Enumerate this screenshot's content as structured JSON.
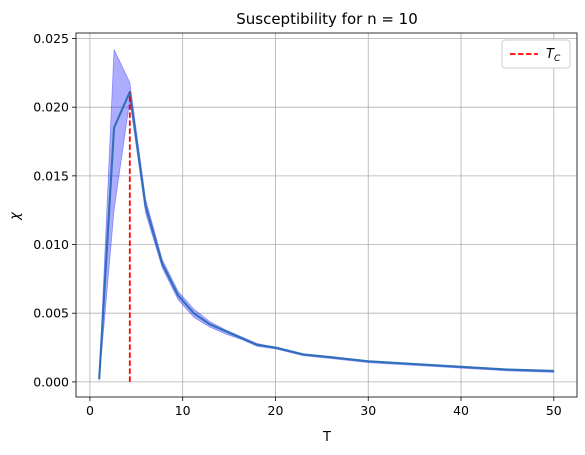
{
  "chart_data": {
    "type": "line",
    "title": "Susceptibility for n = 10",
    "xlabel": "T",
    "ylabel": "χ",
    "xlim": [
      -1.5,
      52.5
    ],
    "ylim": [
      -0.0011,
      0.0254
    ],
    "xticks": [
      0,
      10,
      20,
      30,
      40,
      50
    ],
    "xtick_labels": [
      "0",
      "10",
      "20",
      "30",
      "40",
      "50"
    ],
    "yticks": [
      0.0,
      0.005,
      0.01,
      0.015,
      0.02,
      0.025
    ],
    "ytick_labels": [
      "0.000",
      "0.005",
      "0.010",
      "0.015",
      "0.020",
      "0.025"
    ],
    "grid": true,
    "legend": {
      "placement": "top-right",
      "entries": [
        {
          "label": "T_C",
          "label_main": "T",
          "label_sub": "C",
          "style": "dashed",
          "color": "#ff0000"
        }
      ]
    },
    "series": [
      {
        "x": [
          1.0,
          2.6,
          4.3,
          6.0,
          7.8,
          9.5,
          11.2,
          12.9,
          14.6,
          16.3,
          18.0,
          20.0,
          23.0,
          26.0,
          30.0,
          35.0,
          40.0,
          45.0,
          50.0
        ],
        "values": [
          0.0002,
          0.0185,
          0.0211,
          0.0128,
          0.0086,
          0.0063,
          0.005,
          0.0042,
          0.0037,
          0.0032,
          0.0027,
          0.0025,
          0.002,
          0.0018,
          0.0015,
          0.0013,
          0.0011,
          0.0009,
          0.0008
        ],
        "band_upper": [
          0.0002,
          0.0242,
          0.0218,
          0.0133,
          0.0089,
          0.0066,
          0.0053,
          0.0044,
          0.0038,
          0.0033,
          0.0028,
          0.0025,
          0.002,
          0.0018,
          0.0015,
          0.0013,
          0.0011,
          0.0009,
          0.0008
        ],
        "band_lower": [
          0.0001,
          0.0125,
          0.0205,
          0.0123,
          0.0083,
          0.006,
          0.0047,
          0.004,
          0.0035,
          0.0031,
          0.0026,
          0.0024,
          0.0019,
          0.0017,
          0.0014,
          0.0012,
          0.001,
          0.0008,
          0.0007
        ],
        "color": "#3070b8",
        "band_color": "#0000ff"
      }
    ],
    "vline": {
      "x": 4.3,
      "y_top": 0.0211,
      "color": "#ff0000",
      "style": "dashed"
    }
  }
}
